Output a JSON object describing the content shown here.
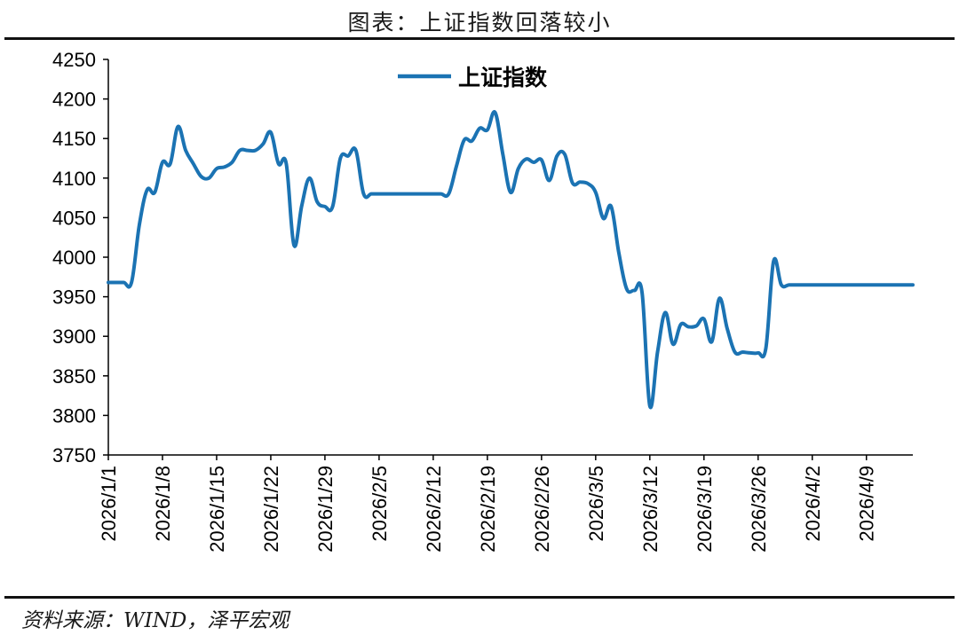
{
  "header": {
    "title": "图表：上证指数回落较小"
  },
  "footer": {
    "source": "资料来源：WIND，泽平宏观"
  },
  "colors": {
    "series": "#1b73b3",
    "axis": "#000000"
  },
  "chart_data": {
    "type": "line",
    "title": "图表：上证指数回落较小",
    "xlabel": "",
    "ylabel": "",
    "ylim": [
      3750,
      4250
    ],
    "yticks": [
      3750,
      3800,
      3850,
      3900,
      3950,
      4000,
      4050,
      4100,
      4150,
      4200,
      4250
    ],
    "xlim": [
      "2026/1/1",
      "2026/4/15"
    ],
    "xticks": [
      "2026/1/1",
      "2026/1/8",
      "2026/1/15",
      "2026/1/22",
      "2026/1/29",
      "2026/2/5",
      "2026/2/12",
      "2026/2/19",
      "2026/2/26",
      "2026/3/5",
      "2026/3/12",
      "2026/3/19",
      "2026/3/26",
      "2026/4/2",
      "2026/4/9"
    ],
    "grid": false,
    "legend": "top-center",
    "series": [
      {
        "name": "上证指数",
        "x": [
          "2026/1/1",
          "2026/1/2",
          "2026/1/3",
          "2026/1/4",
          "2026/1/5",
          "2026/1/6",
          "2026/1/7",
          "2026/1/8",
          "2026/1/9",
          "2026/1/10",
          "2026/1/11",
          "2026/1/12",
          "2026/1/13",
          "2026/1/14",
          "2026/1/15",
          "2026/1/16",
          "2026/1/17",
          "2026/1/18",
          "2026/1/19",
          "2026/1/20",
          "2026/1/21",
          "2026/1/22",
          "2026/1/23",
          "2026/1/24",
          "2026/1/25",
          "2026/1/26",
          "2026/1/27",
          "2026/1/28",
          "2026/1/29",
          "2026/1/30",
          "2026/1/31",
          "2026/2/1",
          "2026/2/2",
          "2026/2/3",
          "2026/2/4",
          "2026/2/5",
          "2026/2/6",
          "2026/2/7",
          "2026/2/8",
          "2026/2/9",
          "2026/2/10",
          "2026/2/11",
          "2026/2/12",
          "2026/2/13",
          "2026/2/14",
          "2026/2/15",
          "2026/2/16",
          "2026/2/17",
          "2026/2/18",
          "2026/2/19",
          "2026/2/20",
          "2026/2/21",
          "2026/2/22",
          "2026/2/23",
          "2026/2/24",
          "2026/2/25",
          "2026/2/26",
          "2026/2/27",
          "2026/2/28",
          "2026/3/1",
          "2026/3/2",
          "2026/3/3",
          "2026/3/4",
          "2026/3/5",
          "2026/3/6",
          "2026/3/7",
          "2026/3/8",
          "2026/3/9",
          "2026/3/10",
          "2026/3/11",
          "2026/3/12",
          "2026/3/13",
          "2026/3/14",
          "2026/3/15",
          "2026/3/16",
          "2026/3/17",
          "2026/3/18",
          "2026/3/19",
          "2026/3/20",
          "2026/3/21",
          "2026/3/22",
          "2026/3/23",
          "2026/3/24",
          "2026/3/25",
          "2026/3/26",
          "2026/3/27",
          "2026/3/28",
          "2026/3/29",
          "2026/3/30",
          "2026/3/31",
          "2026/4/1",
          "2026/4/2",
          "2026/4/3",
          "2026/4/4",
          "2026/4/5",
          "2026/4/6",
          "2026/4/7",
          "2026/4/8",
          "2026/4/9",
          "2026/4/10",
          "2026/4/11",
          "2026/4/12",
          "2026/4/13",
          "2026/4/14",
          "2026/4/15"
        ],
        "values": [
          3968,
          3968,
          3968,
          3968,
          4040,
          4085,
          4082,
          4120,
          4118,
          4165,
          4135,
          4118,
          4102,
          4100,
          4112,
          4114,
          4120,
          4135,
          4135,
          4135,
          4143,
          4158,
          4118,
          4118,
          4015,
          4065,
          4100,
          4070,
          4064,
          4064,
          4125,
          4128,
          4135,
          4080,
          4080,
          4080,
          4080,
          4080,
          4080,
          4080,
          4080,
          4080,
          4080,
          4080,
          4080,
          4115,
          4148,
          4147,
          4163,
          4161,
          4183,
          4130,
          4082,
          4112,
          4124,
          4120,
          4123,
          4097,
          4128,
          4130,
          4094,
          4095,
          4093,
          4082,
          4049,
          4064,
          4005,
          3960,
          3958,
          3955,
          3812,
          3880,
          3930,
          3890,
          3915,
          3912,
          3913,
          3922,
          3893,
          3948,
          3910,
          3880,
          3880,
          3879,
          3879,
          3885,
          3995,
          3965,
          3965,
          3965,
          3965,
          3965,
          3965,
          3965,
          3965,
          3965,
          3965,
          3965,
          3965,
          3965,
          3965,
          3965,
          3965,
          3965,
          3965
        ]
      }
    ]
  }
}
